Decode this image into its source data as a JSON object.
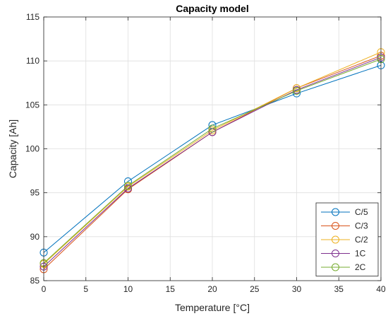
{
  "chart_data": {
    "type": "line",
    "title": "Capacity model",
    "xlabel": "Temperature [°C]",
    "ylabel": "Capacity [Ah]",
    "xlim": [
      0,
      40
    ],
    "ylim": [
      85,
      115
    ],
    "xticks": [
      0,
      5,
      10,
      15,
      20,
      25,
      30,
      35,
      40
    ],
    "yticks": [
      85,
      90,
      95,
      100,
      105,
      110,
      115
    ],
    "grid": true,
    "legend_position": "bottom-right",
    "marker": "circle",
    "x": [
      0,
      10,
      20,
      30,
      40
    ],
    "series": [
      {
        "name": "C/5",
        "color": "#0072BD",
        "values": [
          88.2,
          96.3,
          102.7,
          106.3,
          109.5
        ]
      },
      {
        "name": "C/3",
        "color": "#D95319",
        "values": [
          86.3,
          95.4,
          101.9,
          106.9,
          110.6
        ]
      },
      {
        "name": "C/2",
        "color": "#EDB120",
        "values": [
          86.9,
          95.7,
          102.1,
          106.9,
          111.0
        ]
      },
      {
        "name": "1C",
        "color": "#7E2F8E",
        "values": [
          86.6,
          95.5,
          101.9,
          106.7,
          110.4
        ]
      },
      {
        "name": "2C",
        "color": "#77AC30",
        "values": [
          87.0,
          95.8,
          102.3,
          106.6,
          110.2
        ]
      }
    ]
  }
}
